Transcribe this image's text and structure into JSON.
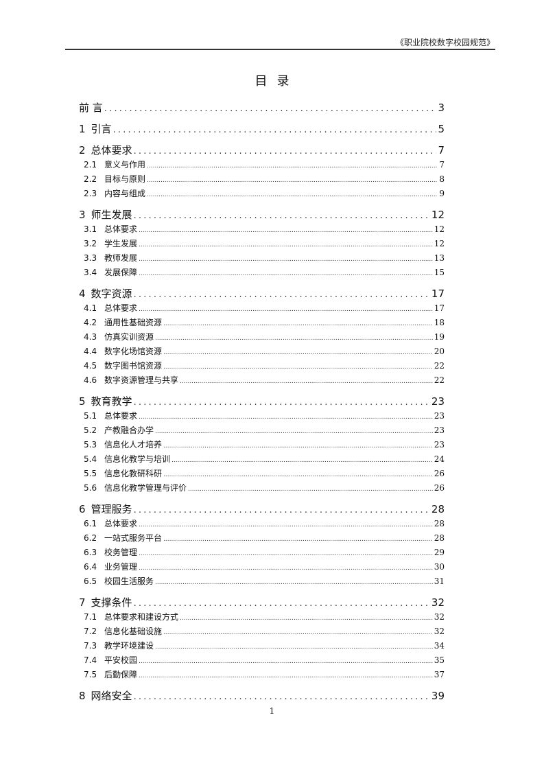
{
  "header": {
    "doc_title": "《职业院校数字校园规范》"
  },
  "title": "目录",
  "toc": [
    {
      "level": 1,
      "num": "",
      "label": "前 言",
      "page": "3"
    },
    {
      "level": 1,
      "num": "1",
      "label": "引言",
      "page": "5"
    },
    {
      "level": 1,
      "num": "2",
      "label": "总体要求",
      "page": "7"
    },
    {
      "level": 2,
      "num": "2.1",
      "label": "意义与作用",
      "page": "7"
    },
    {
      "level": 2,
      "num": "2.2",
      "label": "目标与原则",
      "page": "8"
    },
    {
      "level": 2,
      "num": "2.3",
      "label": "内容与组成",
      "page": "9"
    },
    {
      "level": 1,
      "num": "3",
      "label": "师生发展",
      "page": "12"
    },
    {
      "level": 2,
      "num": "3.1",
      "label": "总体要求",
      "page": "12"
    },
    {
      "level": 2,
      "num": "3.2",
      "label": "学生发展",
      "page": "12"
    },
    {
      "level": 2,
      "num": "3.3",
      "label": "教师发展",
      "page": "13"
    },
    {
      "level": 2,
      "num": "3.4",
      "label": "发展保障",
      "page": "15"
    },
    {
      "level": 1,
      "num": "4",
      "label": "数字资源",
      "page": "17"
    },
    {
      "level": 2,
      "num": "4.1",
      "label": "总体要求",
      "page": "17"
    },
    {
      "level": 2,
      "num": "4.2",
      "label": "通用性基础资源",
      "page": "18"
    },
    {
      "level": 2,
      "num": "4.3",
      "label": "仿真实训资源",
      "page": "19"
    },
    {
      "level": 2,
      "num": "4.4",
      "label": "数字化场馆资源",
      "page": "20"
    },
    {
      "level": 2,
      "num": "4.5",
      "label": "数字图书馆资源",
      "page": "22"
    },
    {
      "level": 2,
      "num": "4.6",
      "label": "数字资源管理与共享",
      "page": "22"
    },
    {
      "level": 1,
      "num": "5",
      "label": "教育教学",
      "page": "23"
    },
    {
      "level": 2,
      "num": "5.1",
      "label": "总体要求",
      "page": "23"
    },
    {
      "level": 2,
      "num": "5.2",
      "label": "产教融合办学",
      "page": "23"
    },
    {
      "level": 2,
      "num": "5.3",
      "label": "信息化人才培养",
      "page": "23"
    },
    {
      "level": 2,
      "num": "5.4",
      "label": "信息化教学与培训",
      "page": "24"
    },
    {
      "level": 2,
      "num": "5.5",
      "label": "信息化教研科研",
      "page": "26"
    },
    {
      "level": 2,
      "num": "5.6",
      "label": "信息化教学管理与评价",
      "page": "26"
    },
    {
      "level": 1,
      "num": "6",
      "label": "管理服务",
      "page": "28"
    },
    {
      "level": 2,
      "num": "6.1",
      "label": "总体要求",
      "page": "28"
    },
    {
      "level": 2,
      "num": "6.2",
      "label": "一站式服务平台",
      "page": "28"
    },
    {
      "level": 2,
      "num": "6.3",
      "label": "校务管理",
      "page": "29"
    },
    {
      "level": 2,
      "num": "6.4",
      "label": "业务管理",
      "page": "30"
    },
    {
      "level": 2,
      "num": "6.5",
      "label": "校园生活服务",
      "page": "31"
    },
    {
      "level": 1,
      "num": "7",
      "label": "支撑条件",
      "page": "32"
    },
    {
      "level": 2,
      "num": "7.1",
      "label": "总体要求和建设方式",
      "page": "32"
    },
    {
      "level": 2,
      "num": "7.2",
      "label": "信息化基础设施",
      "page": "32"
    },
    {
      "level": 2,
      "num": "7.3",
      "label": "教学环境建设",
      "page": "34"
    },
    {
      "level": 2,
      "num": "7.4",
      "label": "平安校园",
      "page": "35"
    },
    {
      "level": 2,
      "num": "7.5",
      "label": "后勤保障",
      "page": "37"
    },
    {
      "level": 1,
      "num": "8",
      "label": "网络安全",
      "page": "39"
    }
  ],
  "page_number": "1"
}
